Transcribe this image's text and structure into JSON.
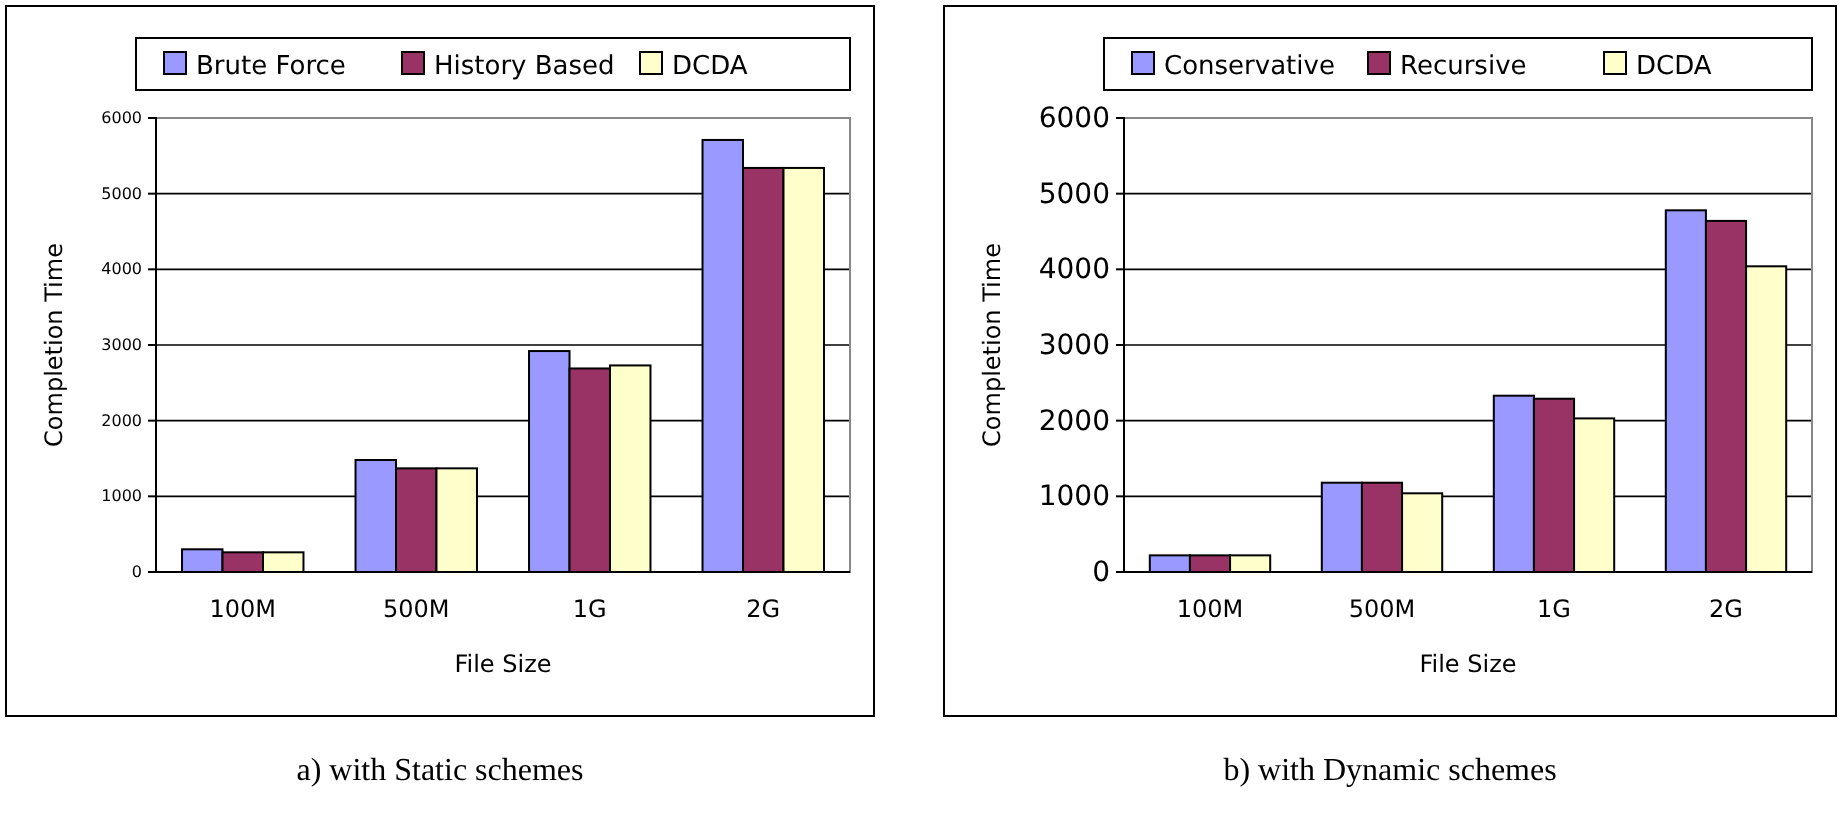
{
  "chart_data": [
    {
      "type": "bar",
      "categories": [
        "100M",
        "500M",
        "1G",
        "2G"
      ],
      "xlabel": "File Size",
      "ylabel": "Completion Time",
      "ylim": [
        0,
        6000
      ],
      "yticks": [
        0,
        1000,
        2000,
        3000,
        4000,
        5000,
        6000
      ],
      "grid": "y",
      "legend": "top",
      "series": [
        {
          "name": "Brute Force",
          "color": "#9999ff",
          "values": [
            300,
            1480,
            2920,
            5710
          ]
        },
        {
          "name": "History Based",
          "color": "#993366",
          "values": [
            260,
            1370,
            2690,
            5340
          ]
        },
        {
          "name": "DCDA",
          "color": "#ffffcc",
          "values": [
            260,
            1370,
            2730,
            5340
          ]
        }
      ],
      "annotations": [
        "a) with Static schemes"
      ]
    },
    {
      "type": "bar",
      "categories": [
        "100M",
        "500M",
        "1G",
        "2G"
      ],
      "xlabel": "File Size",
      "ylabel": "Completion Time",
      "ylim": [
        0,
        6000
      ],
      "yticks": [
        0,
        1000,
        2000,
        3000,
        4000,
        5000,
        6000
      ],
      "grid": "y",
      "legend": "top",
      "series": [
        {
          "name": "Conservative",
          "color": "#9999ff",
          "values": [
            220,
            1180,
            2330,
            4780
          ]
        },
        {
          "name": "Recursive",
          "color": "#993366",
          "values": [
            220,
            1180,
            2290,
            4640
          ]
        },
        {
          "name": "DCDA",
          "color": "#ffffcc",
          "values": [
            220,
            1040,
            2030,
            4040
          ]
        }
      ],
      "annotations": [
        "b) with Dynamic schemes"
      ]
    }
  ]
}
